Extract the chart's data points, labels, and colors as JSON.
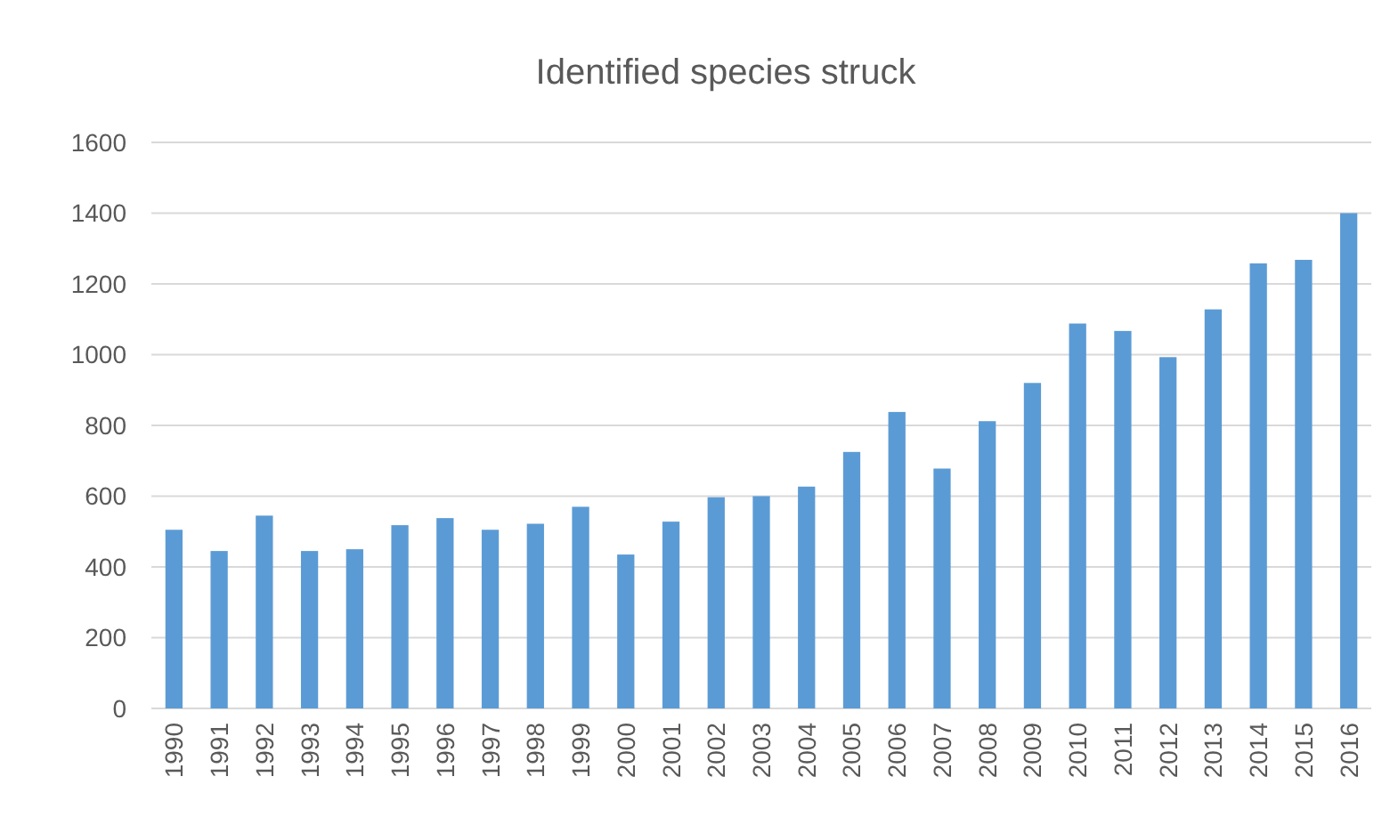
{
  "chart_data": {
    "type": "bar",
    "title": "Identified species struck",
    "categories": [
      "1990",
      "1991",
      "1992",
      "1993",
      "1994",
      "1995",
      "1996",
      "1997",
      "1998",
      "1999",
      "2000",
      "2001",
      "2002",
      "2003",
      "2004",
      "2005",
      "2006",
      "2007",
      "2008",
      "2009",
      "2010",
      "2011",
      "2012",
      "2013",
      "2014",
      "2015",
      "2016"
    ],
    "values": [
      505,
      445,
      545,
      445,
      450,
      518,
      538,
      505,
      522,
      570,
      435,
      528,
      597,
      600,
      627,
      725,
      838,
      678,
      812,
      920,
      1088,
      1067,
      993,
      1128,
      1258,
      1268,
      1400
    ],
    "color": "#5b9bd5",
    "ylim": [
      0,
      1600
    ],
    "yticks": [
      0,
      200,
      400,
      600,
      800,
      1000,
      1200,
      1400,
      1600
    ],
    "grid": "y"
  }
}
